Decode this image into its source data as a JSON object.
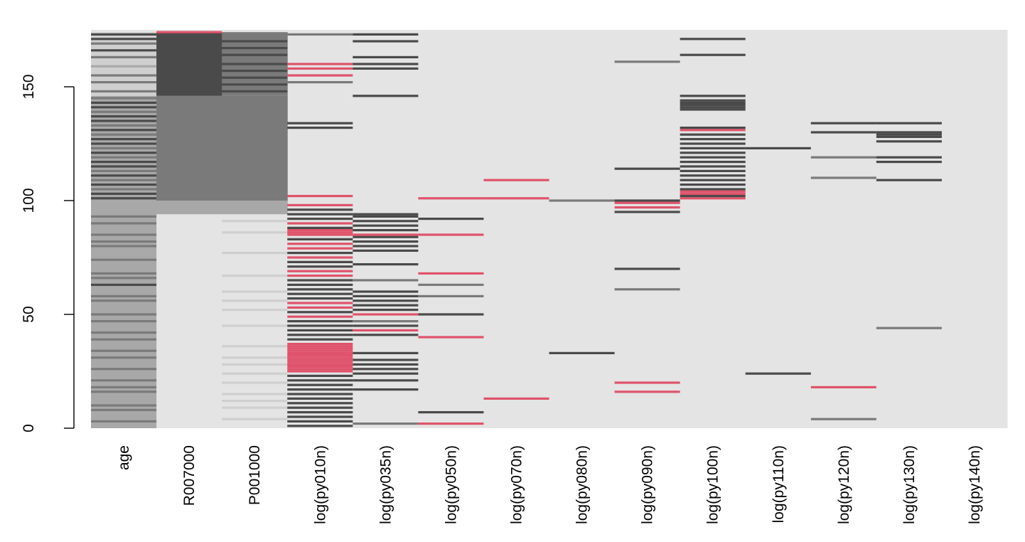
{
  "chart_data": {
    "type": "heatmap",
    "title": "",
    "xlabel": "",
    "ylabel": "",
    "ylim": [
      0,
      175
    ],
    "y_ticks": [
      "0",
      "50",
      "100",
      "150"
    ],
    "y_tick_values": [
      0,
      50,
      100,
      150
    ],
    "columns": [
      "age",
      "R007000",
      "P001000",
      "log(py010n)",
      "log(py035n)",
      "log(py050n)",
      "log(py070n)",
      "log(py080n)",
      "log(py090n)",
      "log(py100n)",
      "log(py110n)",
      "log(py120n)",
      "log(py130n)",
      "log(py140n)"
    ],
    "colors": {
      "background": "#e4e4e4",
      "dark": "#4a4a4a",
      "mid": "#7a7a7a",
      "light": "#a8a8a8",
      "pale": "#cfcfcf",
      "imputed": "#df536b"
    },
    "column_fills": [
      {
        "column": "age",
        "segments": [
          [
            0,
            146,
            "light"
          ],
          [
            146,
            174,
            "pale"
          ]
        ]
      },
      {
        "column": "R007000",
        "segments": [
          [
            0,
            94,
            "background"
          ],
          [
            94,
            100,
            "light"
          ],
          [
            100,
            146,
            "mid"
          ],
          [
            146,
            174,
            "dark"
          ]
        ]
      },
      {
        "column": "P001000",
        "segments": [
          [
            0,
            94,
            "background"
          ],
          [
            94,
            100,
            "light"
          ],
          [
            100,
            146,
            "mid"
          ],
          [
            146,
            174,
            "mid"
          ]
        ]
      }
    ],
    "rows": {
      "age": [
        [
          1,
          "light"
        ],
        [
          3,
          "mid"
        ],
        [
          5,
          "light"
        ],
        [
          8,
          "mid"
        ],
        [
          10,
          "mid"
        ],
        [
          13,
          "light"
        ],
        [
          16,
          "mid"
        ],
        [
          18,
          "mid"
        ],
        [
          21,
          "mid"
        ],
        [
          24,
          "light"
        ],
        [
          26,
          "mid"
        ],
        [
          29,
          "light"
        ],
        [
          31,
          "mid"
        ],
        [
          34,
          "mid"
        ],
        [
          37,
          "light"
        ],
        [
          39,
          "mid"
        ],
        [
          42,
          "mid"
        ],
        [
          44,
          "light"
        ],
        [
          47,
          "mid"
        ],
        [
          50,
          "mid"
        ],
        [
          53,
          "light"
        ],
        [
          56,
          "mid"
        ],
        [
          58,
          "mid"
        ],
        [
          61,
          "light"
        ],
        [
          63,
          "dark"
        ],
        [
          66,
          "mid"
        ],
        [
          68,
          "mid"
        ],
        [
          71,
          "light"
        ],
        [
          74,
          "mid"
        ],
        [
          77,
          "light"
        ],
        [
          80,
          "mid"
        ],
        [
          82,
          "mid"
        ],
        [
          85,
          "mid"
        ],
        [
          88,
          "light"
        ],
        [
          90,
          "mid"
        ],
        [
          93,
          "mid"
        ],
        [
          96,
          "light"
        ],
        [
          101,
          "dark"
        ],
        [
          103,
          "dark"
        ],
        [
          105,
          "mid"
        ],
        [
          107,
          "dark"
        ],
        [
          109,
          "mid"
        ],
        [
          111,
          "dark"
        ],
        [
          113,
          "mid"
        ],
        [
          115,
          "dark"
        ],
        [
          117,
          "dark"
        ],
        [
          119,
          "mid"
        ],
        [
          121,
          "dark"
        ],
        [
          123,
          "mid"
        ],
        [
          125,
          "dark"
        ],
        [
          127,
          "dark"
        ],
        [
          129,
          "mid"
        ],
        [
          131,
          "dark"
        ],
        [
          133,
          "mid"
        ],
        [
          135,
          "dark"
        ],
        [
          137,
          "dark"
        ],
        [
          139,
          "mid"
        ],
        [
          141,
          "dark"
        ],
        [
          143,
          "dark"
        ],
        [
          145,
          "mid"
        ],
        [
          148,
          "mid"
        ],
        [
          152,
          "mid"
        ],
        [
          155,
          "mid"
        ],
        [
          159,
          "light"
        ],
        [
          163,
          "mid"
        ],
        [
          166,
          "dark"
        ],
        [
          169,
          "mid"
        ],
        [
          171,
          "dark"
        ],
        [
          173,
          "dark"
        ]
      ],
      "R007000": [
        [
          174,
          "imputed"
        ]
      ],
      "P001000": [
        [
          4,
          "pale"
        ],
        [
          9,
          "pale"
        ],
        [
          12,
          "pale"
        ],
        [
          15,
          "pale"
        ],
        [
          20,
          "pale"
        ],
        [
          24,
          "pale"
        ],
        [
          28,
          "pale"
        ],
        [
          31,
          "pale"
        ],
        [
          36,
          "pale"
        ],
        [
          45,
          "pale"
        ],
        [
          52,
          "pale"
        ],
        [
          56,
          "pale"
        ],
        [
          60,
          "pale"
        ],
        [
          67,
          "pale"
        ],
        [
          77,
          "pale"
        ],
        [
          86,
          "pale"
        ],
        [
          91,
          "pale"
        ],
        [
          148,
          "dark"
        ],
        [
          151,
          "dark"
        ],
        [
          154,
          "dark"
        ],
        [
          157,
          "dark"
        ],
        [
          160,
          "dark"
        ],
        [
          164,
          "dark"
        ],
        [
          167,
          "dark"
        ],
        [
          170,
          "dark"
        ]
      ],
      "log(py010n)": [
        [
          1,
          "dark"
        ],
        [
          3,
          "dark"
        ],
        [
          5,
          "dark"
        ],
        [
          7,
          "dark"
        ],
        [
          9,
          "dark"
        ],
        [
          11,
          "dark"
        ],
        [
          13,
          "dark"
        ],
        [
          15,
          "dark"
        ],
        [
          17,
          "dark"
        ],
        [
          19,
          "dark"
        ],
        [
          21,
          "dark"
        ],
        [
          23,
          "dark"
        ],
        [
          25,
          "imputed"
        ],
        [
          26,
          "imputed"
        ],
        [
          27,
          "imputed"
        ],
        [
          28,
          "imputed"
        ],
        [
          29,
          "imputed"
        ],
        [
          30,
          "imputed"
        ],
        [
          31,
          "imputed"
        ],
        [
          32,
          "imputed"
        ],
        [
          33,
          "imputed"
        ],
        [
          34,
          "imputed"
        ],
        [
          35,
          "imputed"
        ],
        [
          36,
          "imputed"
        ],
        [
          37,
          "imputed"
        ],
        [
          39,
          "dark"
        ],
        [
          41,
          "dark"
        ],
        [
          43,
          "dark"
        ],
        [
          45,
          "dark"
        ],
        [
          47,
          "dark"
        ],
        [
          49,
          "imputed"
        ],
        [
          51,
          "dark"
        ],
        [
          53,
          "imputed"
        ],
        [
          55,
          "imputed"
        ],
        [
          57,
          "dark"
        ],
        [
          59,
          "dark"
        ],
        [
          61,
          "dark"
        ],
        [
          63,
          "dark"
        ],
        [
          65,
          "dark"
        ],
        [
          67,
          "imputed"
        ],
        [
          69,
          "imputed"
        ],
        [
          71,
          "dark"
        ],
        [
          73,
          "dark"
        ],
        [
          75,
          "imputed"
        ],
        [
          77,
          "dark"
        ],
        [
          79,
          "imputed"
        ],
        [
          81,
          "imputed"
        ],
        [
          83,
          "dark"
        ],
        [
          85,
          "imputed"
        ],
        [
          86,
          "imputed"
        ],
        [
          87,
          "imputed"
        ],
        [
          88,
          "dark"
        ],
        [
          90,
          "imputed"
        ],
        [
          92,
          "dark"
        ],
        [
          94,
          "dark"
        ],
        [
          96,
          "dark"
        ],
        [
          98,
          "imputed"
        ],
        [
          102,
          "imputed"
        ],
        [
          132,
          "dark"
        ],
        [
          134,
          "dark"
        ],
        [
          152,
          "mid"
        ],
        [
          155,
          "imputed"
        ],
        [
          158,
          "imputed"
        ],
        [
          160,
          "imputed"
        ],
        [
          173,
          "mid"
        ]
      ],
      "log(py035n)": [
        [
          2,
          "mid"
        ],
        [
          17,
          "dark"
        ],
        [
          21,
          "dark"
        ],
        [
          24,
          "dark"
        ],
        [
          26,
          "dark"
        ],
        [
          28,
          "dark"
        ],
        [
          30,
          "dark"
        ],
        [
          33,
          "dark"
        ],
        [
          41,
          "dark"
        ],
        [
          43,
          "imputed"
        ],
        [
          45,
          "dark"
        ],
        [
          47,
          "mid"
        ],
        [
          50,
          "imputed"
        ],
        [
          52,
          "dark"
        ],
        [
          54,
          "dark"
        ],
        [
          56,
          "dark"
        ],
        [
          58,
          "dark"
        ],
        [
          60,
          "dark"
        ],
        [
          65,
          "mid"
        ],
        [
          72,
          "dark"
        ],
        [
          78,
          "dark"
        ],
        [
          80,
          "dark"
        ],
        [
          82,
          "dark"
        ],
        [
          84,
          "dark"
        ],
        [
          85,
          "imputed"
        ],
        [
          87,
          "dark"
        ],
        [
          89,
          "dark"
        ],
        [
          91,
          "dark"
        ],
        [
          93,
          "dark"
        ],
        [
          94,
          "dark"
        ],
        [
          146,
          "dark"
        ],
        [
          158,
          "dark"
        ],
        [
          160,
          "dark"
        ],
        [
          163,
          "dark"
        ],
        [
          170,
          "dark"
        ],
        [
          173,
          "dark"
        ]
      ],
      "log(py050n)": [
        [
          2,
          "imputed"
        ],
        [
          7,
          "dark"
        ],
        [
          40,
          "imputed"
        ],
        [
          50,
          "dark"
        ],
        [
          58,
          "mid"
        ],
        [
          63,
          "mid"
        ],
        [
          68,
          "imputed"
        ],
        [
          85,
          "imputed"
        ],
        [
          92,
          "dark"
        ],
        [
          101,
          "imputed"
        ]
      ],
      "log(py070n)": [
        [
          13,
          "imputed"
        ],
        [
          101,
          "imputed"
        ],
        [
          109,
          "imputed"
        ]
      ],
      "log(py080n)": [
        [
          33,
          "dark"
        ],
        [
          100,
          "mid"
        ]
      ],
      "log(py090n)": [
        [
          16,
          "imputed"
        ],
        [
          20,
          "imputed"
        ],
        [
          61,
          "mid"
        ],
        [
          70,
          "dark"
        ],
        [
          95,
          "dark"
        ],
        [
          97,
          "imputed"
        ],
        [
          99,
          "imputed"
        ],
        [
          100,
          "dark"
        ],
        [
          114,
          "dark"
        ],
        [
          161,
          "mid"
        ]
      ],
      "log(py100n)": [
        [
          101,
          "imputed"
        ],
        [
          102,
          "dark"
        ],
        [
          103,
          "imputed"
        ],
        [
          104,
          "imputed"
        ],
        [
          105,
          "dark"
        ],
        [
          107,
          "dark"
        ],
        [
          109,
          "dark"
        ],
        [
          111,
          "dark"
        ],
        [
          113,
          "dark"
        ],
        [
          115,
          "dark"
        ],
        [
          117,
          "dark"
        ],
        [
          119,
          "dark"
        ],
        [
          121,
          "dark"
        ],
        [
          123,
          "dark"
        ],
        [
          125,
          "dark"
        ],
        [
          127,
          "dark"
        ],
        [
          129,
          "dark"
        ],
        [
          131,
          "imputed"
        ],
        [
          132,
          "dark"
        ],
        [
          140,
          "dark"
        ],
        [
          141,
          "dark"
        ],
        [
          142,
          "dark"
        ],
        [
          143,
          "dark"
        ],
        [
          144,
          "dark"
        ],
        [
          146,
          "dark"
        ],
        [
          164,
          "dark"
        ],
        [
          171,
          "dark"
        ]
      ],
      "log(py110n)": [
        [
          24,
          "dark"
        ],
        [
          123,
          "dark"
        ]
      ],
      "log(py120n)": [
        [
          4,
          "mid"
        ],
        [
          18,
          "imputed"
        ],
        [
          110,
          "mid"
        ],
        [
          119,
          "mid"
        ],
        [
          130,
          "dark"
        ],
        [
          134,
          "dark"
        ]
      ],
      "log(py130n)": [
        [
          44,
          "mid"
        ],
        [
          109,
          "dark"
        ],
        [
          117,
          "dark"
        ],
        [
          119,
          "dark"
        ],
        [
          126,
          "dark"
        ],
        [
          128,
          "dark"
        ],
        [
          129,
          "dark"
        ],
        [
          130,
          "dark"
        ],
        [
          134,
          "dark"
        ]
      ],
      "log(py140n)": []
    }
  }
}
